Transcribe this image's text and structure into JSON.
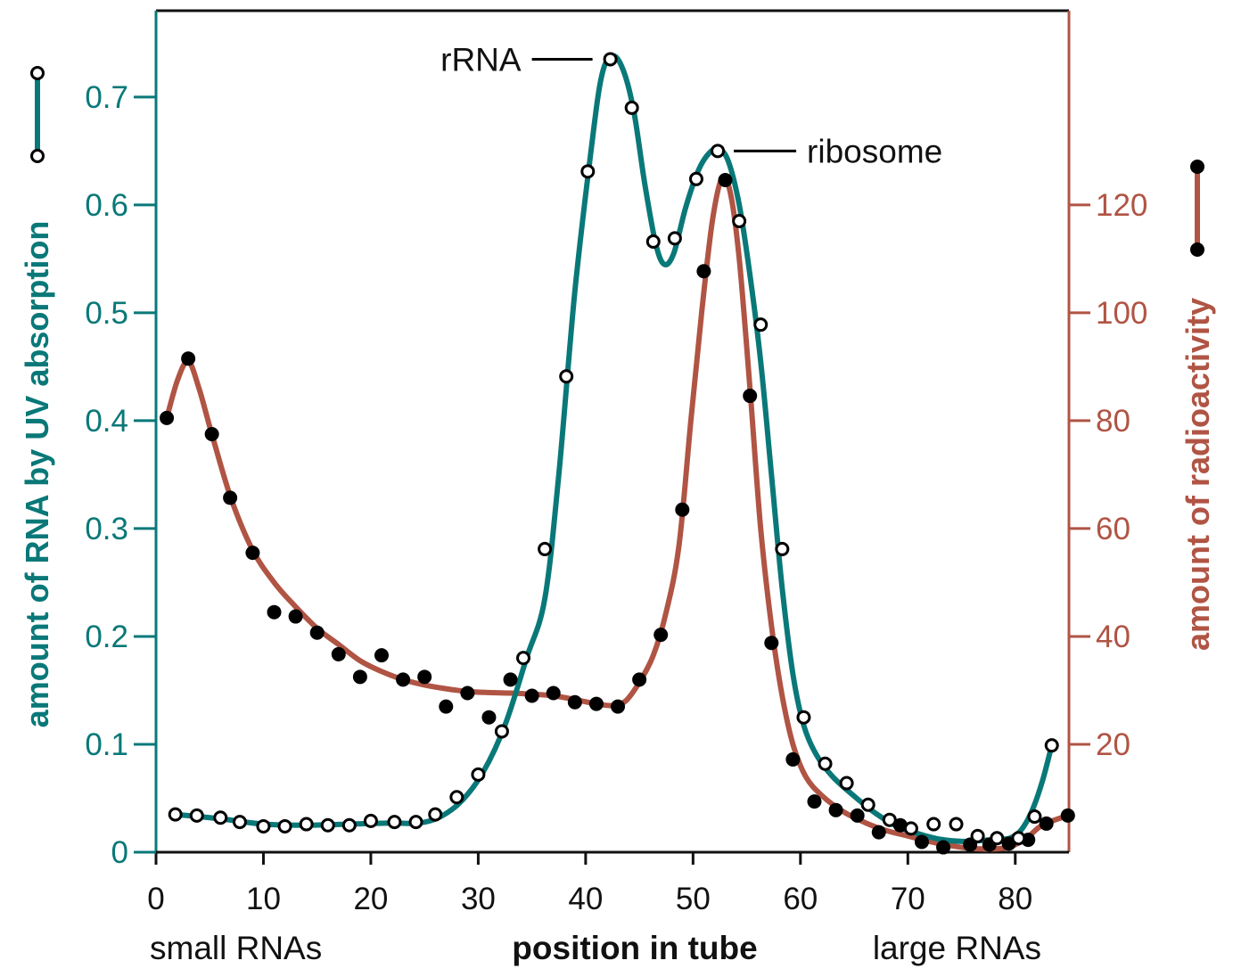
{
  "colors": {
    "uv": "#0a7878",
    "radio": "#b05444",
    "text": "#111111",
    "axis": "#111111"
  },
  "chart_data": {
    "type": "scatter",
    "xlabel": "position in tube",
    "x_note_left": "small RNAs",
    "x_note_right": "large RNAs",
    "xlim": [
      0,
      85
    ],
    "xticks": [
      0,
      10,
      20,
      30,
      40,
      50,
      60,
      70,
      80
    ],
    "left_axis": {
      "label": "amount of RNA by UV absorption",
      "ylim": [
        0,
        0.78
      ],
      "ticks": [
        0,
        0.1,
        0.2,
        0.3,
        0.4,
        0.5,
        0.6,
        0.7
      ],
      "tick_labels": [
        "0",
        "0.1",
        "0.2",
        "0.3",
        "0.4",
        "0.5",
        "0.6",
        "0.7"
      ]
    },
    "right_axis": {
      "label": "amount of radioactivity",
      "ylim": [
        0,
        156
      ],
      "ticks": [
        20,
        40,
        60,
        80,
        100,
        120
      ],
      "tick_labels": [
        "20",
        "40",
        "60",
        "80",
        "100",
        "120"
      ]
    },
    "annotations": [
      {
        "text": "rRNA",
        "x": 42.3,
        "y": 0.735,
        "axis": "left"
      },
      {
        "text": "ribosome",
        "x": 52.3,
        "y": 0.65,
        "axis": "left"
      }
    ],
    "series": [
      {
        "marker": "open-circle",
        "axis": "left",
        "points": [
          [
            1.8,
            0.035
          ],
          [
            3.8,
            0.034
          ],
          [
            6,
            0.032
          ],
          [
            7.8,
            0.028
          ],
          [
            10,
            0.024
          ],
          [
            12,
            0.024
          ],
          [
            14,
            0.026
          ],
          [
            16,
            0.025
          ],
          [
            18,
            0.025
          ],
          [
            20,
            0.029
          ],
          [
            22.2,
            0.028
          ],
          [
            24.2,
            0.028
          ],
          [
            26,
            0.035
          ],
          [
            28,
            0.051
          ],
          [
            30,
            0.072
          ],
          [
            32.2,
            0.112
          ],
          [
            34.2,
            0.18
          ],
          [
            36.2,
            0.281
          ],
          [
            38.2,
            0.441
          ],
          [
            40.2,
            0.631
          ],
          [
            42.3,
            0.735
          ],
          [
            44.3,
            0.69
          ],
          [
            46.3,
            0.566
          ],
          [
            48.3,
            0.569
          ],
          [
            50.3,
            0.624
          ],
          [
            52.3,
            0.65
          ],
          [
            54.3,
            0.585
          ],
          [
            56.3,
            0.489
          ],
          [
            58.3,
            0.281
          ],
          [
            60.3,
            0.125
          ],
          [
            62.3,
            0.082
          ],
          [
            64.3,
            0.064
          ],
          [
            66.3,
            0.044
          ],
          [
            68.3,
            0.03
          ],
          [
            70.3,
            0.022
          ],
          [
            72.4,
            0.026
          ],
          [
            74.5,
            0.026
          ],
          [
            76.5,
            0.015
          ],
          [
            78.3,
            0.013
          ],
          [
            80.3,
            0.013
          ],
          [
            81.8,
            0.033
          ],
          [
            83.4,
            0.099
          ]
        ],
        "fit_curve": [
          [
            1.8,
            0.035
          ],
          [
            6,
            0.031
          ],
          [
            10,
            0.026
          ],
          [
            14,
            0.025
          ],
          [
            18,
            0.026
          ],
          [
            22,
            0.027
          ],
          [
            24.5,
            0.027
          ],
          [
            26.5,
            0.033
          ],
          [
            28.5,
            0.048
          ],
          [
            30.5,
            0.075
          ],
          [
            32.5,
            0.118
          ],
          [
            34.5,
            0.18
          ],
          [
            36.2,
            0.235
          ],
          [
            37.5,
            0.35
          ],
          [
            39,
            0.52
          ],
          [
            40.5,
            0.65
          ],
          [
            41.5,
            0.72
          ],
          [
            42.5,
            0.738
          ],
          [
            43.5,
            0.725
          ],
          [
            44.5,
            0.686
          ],
          [
            45.5,
            0.62
          ],
          [
            46.5,
            0.565
          ],
          [
            47.3,
            0.545
          ],
          [
            48.2,
            0.555
          ],
          [
            49.3,
            0.597
          ],
          [
            50.5,
            0.632
          ],
          [
            51.5,
            0.648
          ],
          [
            52.4,
            0.652
          ],
          [
            53.3,
            0.64
          ],
          [
            54.3,
            0.6
          ],
          [
            55.3,
            0.535
          ],
          [
            56.3,
            0.455
          ],
          [
            57.3,
            0.35
          ],
          [
            58.3,
            0.245
          ],
          [
            59.3,
            0.165
          ],
          [
            60.3,
            0.118
          ],
          [
            61.5,
            0.09
          ],
          [
            63,
            0.07
          ],
          [
            65,
            0.052
          ],
          [
            67,
            0.036
          ],
          [
            69,
            0.024
          ],
          [
            71,
            0.017
          ],
          [
            73,
            0.012
          ],
          [
            75,
            0.01
          ],
          [
            77,
            0.011
          ],
          [
            78.5,
            0.012
          ],
          [
            79.5,
            0.013
          ],
          [
            80.5,
            0.02
          ],
          [
            81.5,
            0.037
          ],
          [
            82.5,
            0.065
          ],
          [
            83.4,
            0.099
          ]
        ]
      },
      {
        "marker": "filled-circle",
        "axis": "right",
        "points": [
          [
            1,
            80.5
          ],
          [
            3,
            91.5
          ],
          [
            5.2,
            77.5
          ],
          [
            6.9,
            65.7
          ],
          [
            9,
            55.5
          ],
          [
            11,
            44.5
          ],
          [
            13,
            43.7
          ],
          [
            15,
            40.7
          ],
          [
            17,
            36.7
          ],
          [
            19,
            32.5
          ],
          [
            21,
            36.5
          ],
          [
            23,
            32
          ],
          [
            25,
            32.5
          ],
          [
            27,
            27
          ],
          [
            29,
            29.5
          ],
          [
            31,
            25
          ],
          [
            33,
            32
          ],
          [
            35,
            29
          ],
          [
            37,
            29.5
          ],
          [
            39,
            27.8
          ],
          [
            41,
            27.5
          ],
          [
            43,
            27
          ],
          [
            45,
            32
          ],
          [
            47,
            40.3
          ],
          [
            49,
            63.5
          ],
          [
            51,
            107.7
          ],
          [
            53,
            124.6
          ],
          [
            55.3,
            84.6
          ],
          [
            57.3,
            38.8
          ],
          [
            59.3,
            17.2
          ],
          [
            61.3,
            9.4
          ],
          [
            63.3,
            7.8
          ],
          [
            65.3,
            6.8
          ],
          [
            67.3,
            3.7
          ],
          [
            69.3,
            5
          ],
          [
            71.3,
            1.9
          ],
          [
            73.3,
            0.9
          ],
          [
            75.8,
            1.4
          ],
          [
            77.6,
            1.4
          ],
          [
            79.4,
            1.6
          ],
          [
            81.2,
            2.3
          ],
          [
            82.9,
            5.3
          ],
          [
            84.9,
            6.8
          ]
        ],
        "fit_curve": [
          [
            1,
            80.5
          ],
          [
            2,
            87.5
          ],
          [
            3,
            91
          ],
          [
            4,
            86
          ],
          [
            5.2,
            77.5
          ],
          [
            7,
            65.5
          ],
          [
            9,
            56
          ],
          [
            11,
            50
          ],
          [
            13,
            45.5
          ],
          [
            15,
            41.5
          ],
          [
            17,
            38.5
          ],
          [
            19,
            35.5
          ],
          [
            21,
            33.5
          ],
          [
            23,
            32
          ],
          [
            25,
            31
          ],
          [
            27,
            30.3
          ],
          [
            29,
            29.8
          ],
          [
            31,
            29.6
          ],
          [
            33,
            29.5
          ],
          [
            35,
            29.3
          ],
          [
            37,
            29
          ],
          [
            39,
            28.3
          ],
          [
            41,
            27.5
          ],
          [
            42.5,
            27.2
          ],
          [
            43.7,
            28
          ],
          [
            45,
            31.5
          ],
          [
            46.3,
            36.5
          ],
          [
            47.5,
            44.5
          ],
          [
            48.7,
            57
          ],
          [
            49.8,
            80
          ],
          [
            50.8,
            100
          ],
          [
            51.8,
            117
          ],
          [
            52.7,
            125
          ],
          [
            53.5,
            122
          ],
          [
            54.3,
            110
          ],
          [
            55.3,
            86
          ],
          [
            56.3,
            60
          ],
          [
            57.3,
            42
          ],
          [
            58.3,
            29
          ],
          [
            59.3,
            20
          ],
          [
            60.5,
            14
          ],
          [
            62,
            10.5
          ],
          [
            64,
            7.5
          ],
          [
            66,
            5.5
          ],
          [
            68,
            4
          ],
          [
            70,
            3
          ],
          [
            72,
            2
          ],
          [
            74,
            1.2
          ],
          [
            76,
            0.7
          ],
          [
            78,
            0.6
          ],
          [
            79.5,
            1
          ],
          [
            81,
            2.5
          ],
          [
            82.5,
            5
          ],
          [
            84.9,
            6.8
          ]
        ]
      }
    ],
    "legend": {
      "placement": "beside-axes",
      "entries": [
        {
          "marker": "open-circle"
        },
        {
          "marker": "filled-circle"
        }
      ]
    }
  }
}
